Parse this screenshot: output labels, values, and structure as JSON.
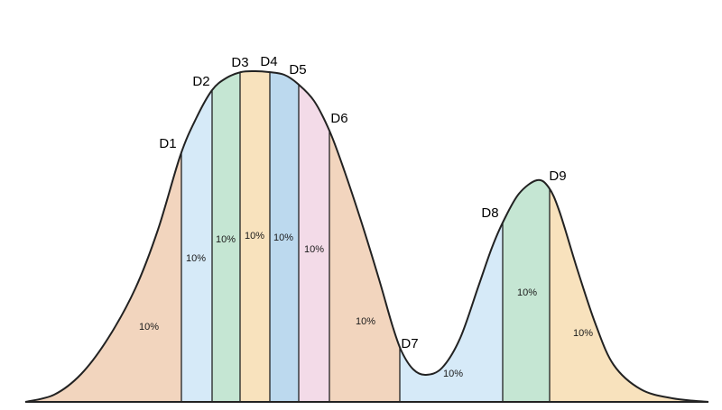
{
  "chart_data": {
    "type": "area",
    "title": "",
    "xlabel": "",
    "ylabel": "",
    "grid": false,
    "legend": "none",
    "deciles": [
      "D1",
      "D2",
      "D3",
      "D4",
      "D5",
      "D6",
      "D7",
      "D8",
      "D9"
    ],
    "segments": [
      {
        "label": "10%",
        "color": "#f2d5be"
      },
      {
        "label": "10%",
        "color": "#d6eaf8"
      },
      {
        "label": "10%",
        "color": "#c5e6d3"
      },
      {
        "label": "10%",
        "color": "#f8e2bd"
      },
      {
        "label": "10%",
        "color": "#bcd9ee"
      },
      {
        "label": "10%",
        "color": "#f3dbe8"
      },
      {
        "label": "10%",
        "color": "#f2d5be"
      },
      {
        "label": "10%",
        "color": "#d6eaf8"
      },
      {
        "label": "10%",
        "color": "#c5e6d3"
      },
      {
        "label": "10%",
        "color": "#f8e2bd"
      }
    ],
    "line_color": "#222222"
  }
}
